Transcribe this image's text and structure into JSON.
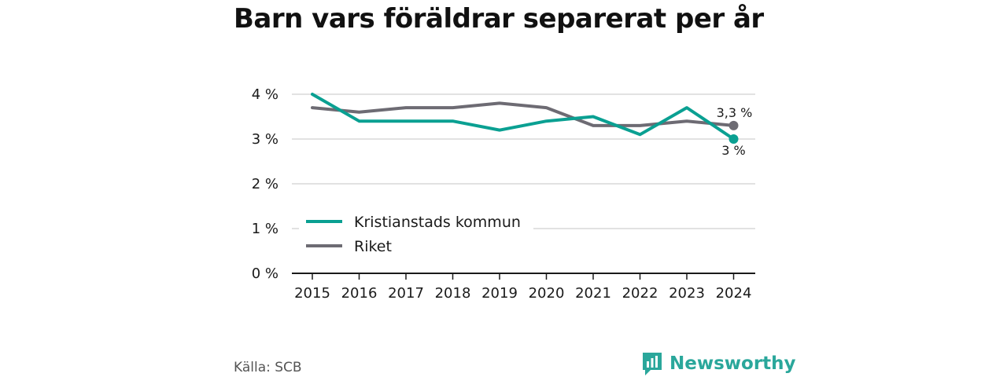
{
  "title": "Barn vars föräldrar separerat per år",
  "source": "Källa: SCB",
  "brand": {
    "name": "Newsworthy",
    "color": "#2aa79b",
    "icon": "bar-chart-icon"
  },
  "colors": {
    "kristianstad": "#0aa092",
    "riket": "#6d6b73",
    "grid": "#d9d9d9",
    "axis": "#1a1a1a"
  },
  "chart_data": {
    "type": "line",
    "title": "Barn vars föräldrar separerat per år",
    "xlabel": "",
    "ylabel": "",
    "x": [
      "2015",
      "2016",
      "2017",
      "2018",
      "2019",
      "2020",
      "2021",
      "2022",
      "2023",
      "2024"
    ],
    "yticks": [
      "0 %",
      "1 %",
      "2 %",
      "3 %",
      "4 %"
    ],
    "ylim": [
      0,
      4
    ],
    "grid": true,
    "legend": "left-middle",
    "series": [
      {
        "name": "Kristianstads kommun",
        "key": "kristianstad",
        "values": [
          4.0,
          3.4,
          3.4,
          3.4,
          3.2,
          3.4,
          3.5,
          3.1,
          3.7,
          3.0
        ],
        "end_label": "3 %"
      },
      {
        "name": "Riket",
        "key": "riket",
        "values": [
          3.7,
          3.6,
          3.7,
          3.7,
          3.8,
          3.7,
          3.3,
          3.3,
          3.4,
          3.3
        ],
        "end_label": "3,3 %"
      }
    ]
  }
}
